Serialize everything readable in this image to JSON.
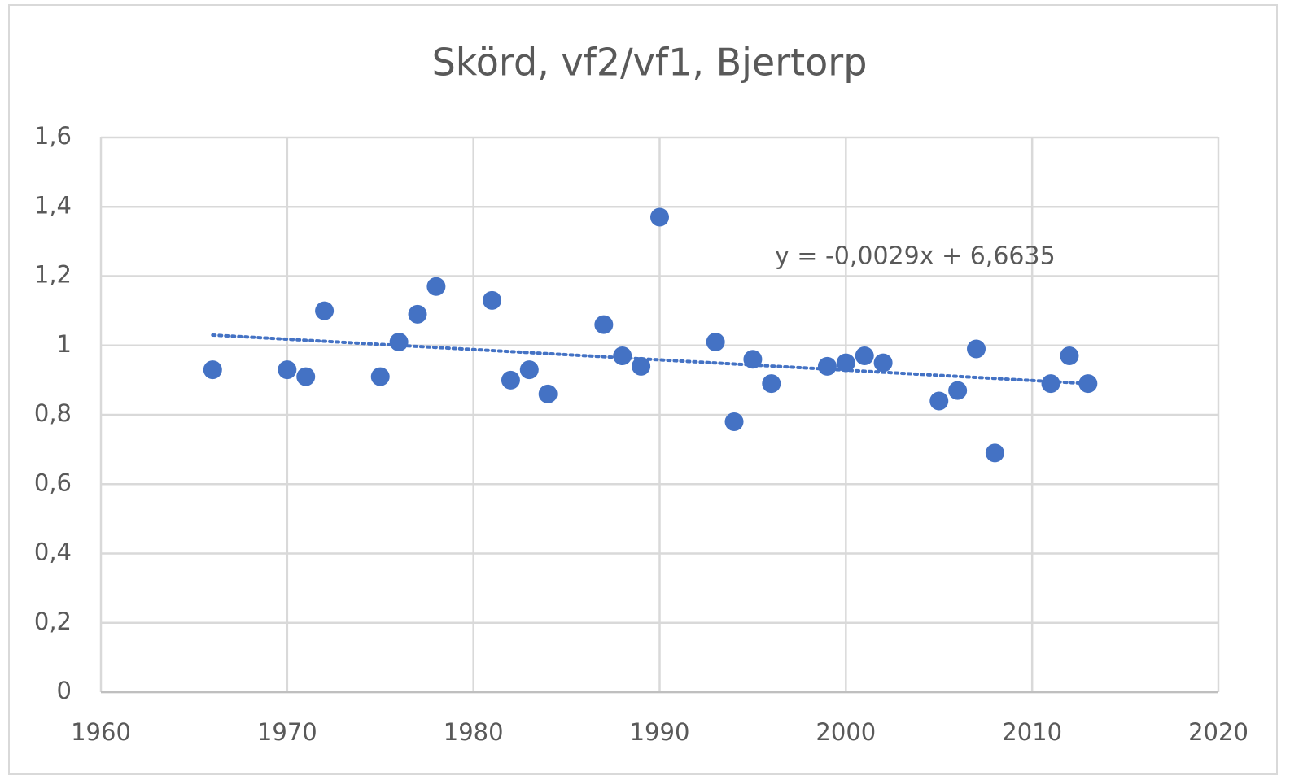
{
  "chart_data": {
    "type": "scatter",
    "title": "Skörd, vf2/vf1, Bjertorp",
    "series": [
      {
        "color": "#4472c4",
        "x": [
          1966,
          1970,
          1971,
          1972,
          1975,
          1976,
          1977,
          1978,
          1981,
          1982,
          1983,
          1984,
          1987,
          1988,
          1989,
          1990,
          1993,
          1994,
          1995,
          1996,
          1999,
          2000,
          2001,
          2002,
          2005,
          2006,
          2007,
          2008,
          2011,
          2012,
          2013
        ],
        "values": [
          0.93,
          0.93,
          0.91,
          1.1,
          0.91,
          1.01,
          1.09,
          1.17,
          1.13,
          0.9,
          0.93,
          0.86,
          1.06,
          0.97,
          0.94,
          1.37,
          1.01,
          0.78,
          0.96,
          0.89,
          0.94,
          0.95,
          0.97,
          0.95,
          0.84,
          0.87,
          0.99,
          0.69,
          0.89,
          0.97,
          0.89
        ]
      }
    ],
    "trendline": {
      "x": [
        1966,
        2013
      ],
      "values": [
        1.03,
        0.89
      ],
      "label": "y = -0,0029x + 6,6635"
    },
    "xlim": [
      1960,
      2020
    ],
    "xticks": [
      1960,
      1970,
      1980,
      1990,
      2000,
      2010,
      2020
    ],
    "ylim": [
      0,
      1.6
    ],
    "yticks": [
      0,
      {
        "value": 0.2,
        "label": "0,2"
      },
      {
        "value": 0.4,
        "label": "0,4"
      },
      {
        "value": 0.6,
        "label": "0,6"
      },
      {
        "value": 0.8,
        "label": "0,8"
      },
      1,
      {
        "value": 1.2,
        "label": "1,2"
      },
      {
        "value": 1.4,
        "label": "1,4"
      },
      {
        "value": 1.6,
        "label": "1,6"
      }
    ],
    "grid": true
  }
}
